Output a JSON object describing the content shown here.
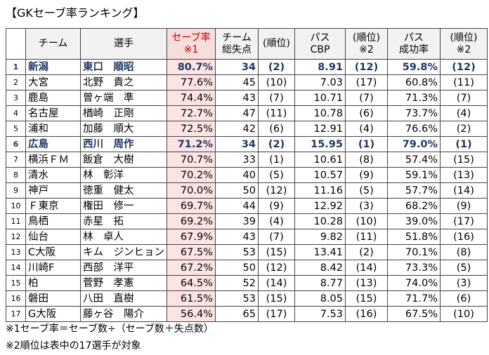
{
  "title": "【GKセーブ率ランキング】",
  "headers": {
    "blank": "",
    "team": "チーム",
    "player": "選手",
    "save_rate": [
      "セーブ率",
      "※1"
    ],
    "team_goals_against": [
      "チーム",
      "総失点"
    ],
    "rank1": "(順位)",
    "pass_cbp": [
      "パス",
      "CBP"
    ],
    "rank2": [
      "(順位)",
      "※2"
    ],
    "pass_success": [
      "パス",
      "成功率"
    ],
    "rank3": [
      "(順位)",
      "※2"
    ]
  },
  "highlight_color": "#1f3864",
  "rows": [
    {
      "num": "1",
      "team": "新潟",
      "player": "東口　順昭",
      "save": "80.7%",
      "ga": "34",
      "ga_rank": "(2)",
      "cbp": "8.91",
      "cbp_rank": "(12)",
      "ps": "59.8%",
      "ps_rank": "(12)",
      "highlight": true
    },
    {
      "num": "2",
      "team": "大宮",
      "player": "北野　貴之",
      "save": "77.6%",
      "ga": "45",
      "ga_rank": "(10)",
      "cbp": "7.03",
      "cbp_rank": "(17)",
      "ps": "60.8%",
      "ps_rank": "(11)",
      "highlight": false
    },
    {
      "num": "3",
      "team": "鹿島",
      "player": "曽ヶ端　準",
      "save": "74.4%",
      "ga": "43",
      "ga_rank": "(7)",
      "cbp": "10.71",
      "cbp_rank": "(7)",
      "ps": "71.3%",
      "ps_rank": "(7)",
      "highlight": false
    },
    {
      "num": "4",
      "team": "名古屋",
      "player": "楢崎　正剛",
      "save": "72.7%",
      "ga": "47",
      "ga_rank": "(11)",
      "cbp": "10.78",
      "cbp_rank": "(6)",
      "ps": "73.7%",
      "ps_rank": "(4)",
      "highlight": false
    },
    {
      "num": "5",
      "team": "浦和",
      "player": "加藤　順大",
      "save": "72.5%",
      "ga": "42",
      "ga_rank": "(6)",
      "cbp": "12.91",
      "cbp_rank": "(4)",
      "ps": "76.6%",
      "ps_rank": "(2)",
      "highlight": false
    },
    {
      "num": "6",
      "team": "広島",
      "player": "西川　周作",
      "save": "71.2%",
      "ga": "34",
      "ga_rank": "(2)",
      "cbp": "15.95",
      "cbp_rank": "(1)",
      "ps": "79.0%",
      "ps_rank": "(1)",
      "highlight": true
    },
    {
      "num": "7",
      "team": "横浜ＦＭ",
      "player": "飯倉　大樹",
      "save": "70.7%",
      "ga": "33",
      "ga_rank": "(1)",
      "cbp": "10.61",
      "cbp_rank": "(8)",
      "ps": "57.4%",
      "ps_rank": "(15)",
      "highlight": false
    },
    {
      "num": "8",
      "team": "清水",
      "player": "林　彰洋",
      "save": "70.2%",
      "ga": "40",
      "ga_rank": "(5)",
      "cbp": "10.57",
      "cbp_rank": "(9)",
      "ps": "59.1%",
      "ps_rank": "(13)",
      "highlight": false
    },
    {
      "num": "9",
      "team": "神戸",
      "player": "徳重　健太",
      "save": "70.0%",
      "ga": "50",
      "ga_rank": "(12)",
      "cbp": "11.16",
      "cbp_rank": "(5)",
      "ps": "57.7%",
      "ps_rank": "(14)",
      "highlight": false
    },
    {
      "num": "10",
      "team": "Ｆ東京",
      "player": "権田　修一",
      "save": "69.7%",
      "ga": "44",
      "ga_rank": "(9)",
      "cbp": "12.92",
      "cbp_rank": "(3)",
      "ps": "68.2%",
      "ps_rank": "(9)",
      "highlight": false
    },
    {
      "num": "11",
      "team": "鳥栖",
      "player": "赤星　拓",
      "save": "69.2%",
      "ga": "39",
      "ga_rank": "(4)",
      "cbp": "10.28",
      "cbp_rank": "(10)",
      "ps": "39.0%",
      "ps_rank": "(17)",
      "highlight": false
    },
    {
      "num": "12",
      "team": "仙台",
      "player": "林　卓人",
      "save": "67.9%",
      "ga": "43",
      "ga_rank": "(7)",
      "cbp": "9.82",
      "cbp_rank": "(11)",
      "ps": "51.8%",
      "ps_rank": "(16)",
      "highlight": false
    },
    {
      "num": "13",
      "team": "C大阪",
      "player": "キム　ジンヒョン",
      "save": "67.5%",
      "ga": "53",
      "ga_rank": "(15)",
      "cbp": "13.41",
      "cbp_rank": "(2)",
      "ps": "70.1%",
      "ps_rank": "(8)",
      "highlight": false
    },
    {
      "num": "14",
      "team": "川崎F",
      "player": "西部　洋平",
      "save": "67.2%",
      "ga": "50",
      "ga_rank": "(12)",
      "cbp": "8.42",
      "cbp_rank": "(14)",
      "ps": "73.3%",
      "ps_rank": "(5)",
      "highlight": false
    },
    {
      "num": "15",
      "team": "柏",
      "player": "菅野　孝憲",
      "save": "64.5%",
      "ga": "52",
      "ga_rank": "(14)",
      "cbp": "8.77",
      "cbp_rank": "(13)",
      "ps": "74.0%",
      "ps_rank": "(3)",
      "highlight": false
    },
    {
      "num": "16",
      "team": "磐田",
      "player": "八田　直樹",
      "save": "61.5%",
      "ga": "53",
      "ga_rank": "(15)",
      "cbp": "8.05",
      "cbp_rank": "(15)",
      "ps": "71.7%",
      "ps_rank": "(6)",
      "highlight": false
    },
    {
      "num": "17",
      "team": "G大阪",
      "player": "藤ヶ谷　陽介",
      "save": "56.4%",
      "ga": "65",
      "ga_rank": "(17)",
      "cbp": "7.53",
      "cbp_rank": "(16)",
      "ps": "67.5%",
      "ps_rank": "(10)",
      "highlight": false
    }
  ],
  "notes": [
    "※1セーブ率＝セーブ数÷（セーブ数＋失点数）",
    "※2順位は表中の17選手が対象"
  ]
}
